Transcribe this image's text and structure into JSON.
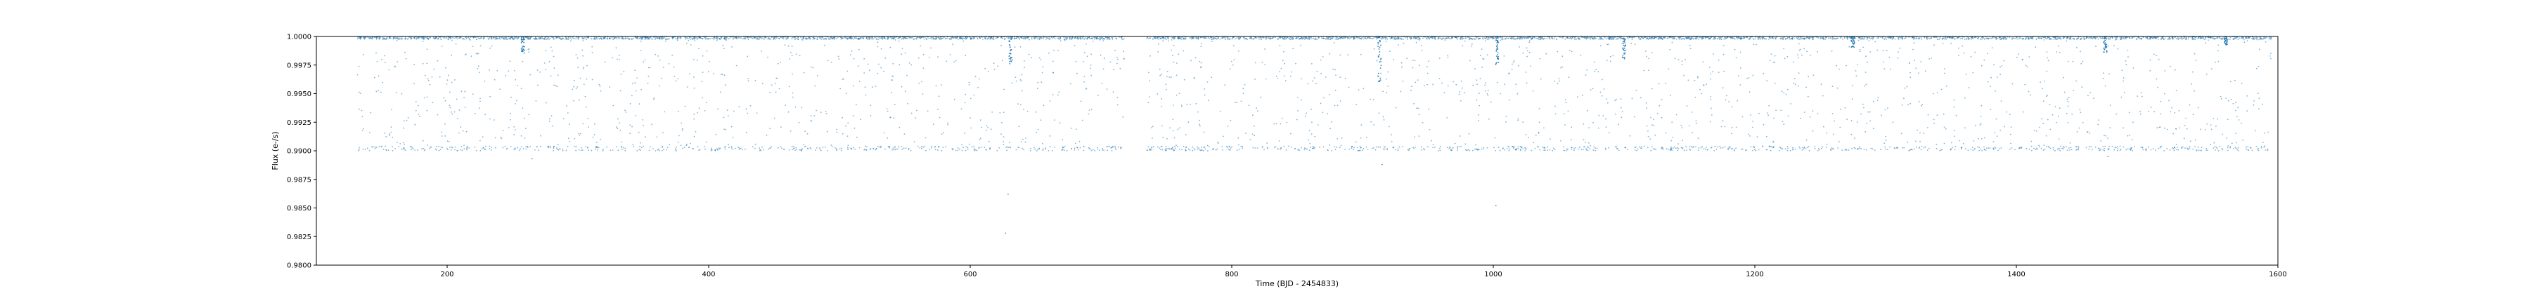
{
  "chart_data": {
    "type": "scatter",
    "xlabel": "Time (BJD - 2454833)",
    "ylabel": "Flux (e-/s)",
    "xlim": [
      100,
      1600
    ],
    "ylim": [
      0.98,
      1.0
    ],
    "x_ticks": [
      200,
      400,
      600,
      800,
      1000,
      1200,
      1400,
      1600
    ],
    "x_tick_labels": [
      "200",
      "400",
      "600",
      "800",
      "1000",
      "1200",
      "1400",
      "1600"
    ],
    "y_ticks": [
      0.98,
      0.9825,
      0.985,
      0.9875,
      0.99,
      0.9925,
      0.995,
      0.9975,
      1.0
    ],
    "y_tick_labels": [
      "0.9800",
      "0.9825",
      "0.9850",
      "0.9875",
      "0.9900",
      "0.9925",
      "0.9950",
      "0.9975",
      "1.0000"
    ],
    "grid": false,
    "marker_color": "#1f77b4",
    "series": [
      {
        "segments": [
          [
            131,
            718
          ],
          [
            735,
            1595
          ]
        ],
        "baseline": 1.0,
        "scatter_floor": 0.99,
        "dips": [
          {
            "x": 258,
            "depth": 0.0015
          },
          {
            "x": 631,
            "depth": 0.0025
          },
          {
            "x": 913,
            "depth": 0.004
          },
          {
            "x": 1003,
            "depth": 0.0025
          },
          {
            "x": 1100,
            "depth": 0.002
          },
          {
            "x": 1275,
            "depth": 0.001
          },
          {
            "x": 1468,
            "depth": 0.0015
          },
          {
            "x": 1560,
            "depth": 0.0008
          }
        ],
        "outliers": [
          {
            "x": 627,
            "y": 0.9828
          },
          {
            "x": 629,
            "y": 0.9862
          },
          {
            "x": 1002,
            "y": 0.9852
          },
          {
            "x": 915,
            "y": 0.9888
          },
          {
            "x": 265,
            "y": 0.9893
          },
          {
            "x": 1470,
            "y": 0.9895
          }
        ]
      }
    ]
  }
}
